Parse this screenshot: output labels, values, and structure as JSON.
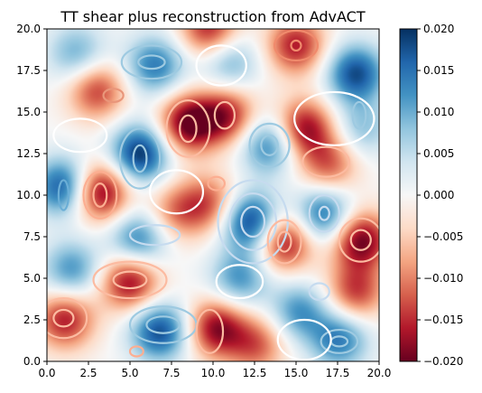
{
  "chart_data": {
    "type": "heatmap",
    "title": "TT shear plus reconstruction from AdvACT",
    "xlabel": "",
    "ylabel": "",
    "xlim": [
      0.0,
      20.0
    ],
    "ylim": [
      0.0,
      20.0
    ],
    "x_ticks": [
      "0.0",
      "2.5",
      "5.0",
      "7.5",
      "10.0",
      "12.5",
      "15.0",
      "17.5",
      "20.0"
    ],
    "y_ticks": [
      "0.0",
      "2.5",
      "5.0",
      "7.5",
      "10.0",
      "12.5",
      "15.0",
      "17.5",
      "20.0"
    ],
    "colormap": "RdBu",
    "color_min": -0.02,
    "color_max": 0.02,
    "colorbar_ticks": [
      "0.020",
      "0.015",
      "0.010",
      "0.005",
      "0.000",
      "−0.005",
      "−0.010",
      "−0.015",
      "−0.020"
    ],
    "grid": false,
    "overlay": "contours",
    "blobs": [
      {
        "x": 12.3,
        "y": 8.4,
        "value": 0.02
      },
      {
        "x": 5.6,
        "y": 12.5,
        "value": 0.02
      },
      {
        "x": 1.0,
        "y": 10.5,
        "value": 0.018
      },
      {
        "x": 18.6,
        "y": 17.3,
        "value": 0.018
      },
      {
        "x": 6.8,
        "y": 1.8,
        "value": 0.018
      },
      {
        "x": 6.5,
        "y": 17.8,
        "value": 0.014
      },
      {
        "x": 13.4,
        "y": 13.0,
        "value": 0.014
      },
      {
        "x": 16.7,
        "y": 8.8,
        "value": 0.016
      },
      {
        "x": 5.5,
        "y": 7.3,
        "value": 0.014
      },
      {
        "x": 1.5,
        "y": 5.5,
        "value": 0.012
      },
      {
        "x": 11.6,
        "y": 5.0,
        "value": 0.012
      },
      {
        "x": 15.2,
        "y": 3.0,
        "value": 0.012
      },
      {
        "x": 17.6,
        "y": 1.3,
        "value": 0.014
      },
      {
        "x": 1.8,
        "y": 18.5,
        "value": 0.01
      },
      {
        "x": 11.0,
        "y": 18.0,
        "value": 0.01
      },
      {
        "x": 19.0,
        "y": 14.0,
        "value": 0.008
      },
      {
        "x": 3.2,
        "y": 10.2,
        "value": -0.02
      },
      {
        "x": 8.5,
        "y": 14.3,
        "value": -0.02
      },
      {
        "x": 10.8,
        "y": 14.8,
        "value": -0.016
      },
      {
        "x": 15.5,
        "y": 14.0,
        "value": -0.018
      },
      {
        "x": 18.9,
        "y": 7.3,
        "value": -0.02
      },
      {
        "x": 14.3,
        "y": 7.2,
        "value": -0.018
      },
      {
        "x": 5.0,
        "y": 4.8,
        "value": -0.018
      },
      {
        "x": 1.1,
        "y": 2.5,
        "value": -0.016
      },
      {
        "x": 10.2,
        "y": 2.0,
        "value": -0.018
      },
      {
        "x": 15.0,
        "y": 19.0,
        "value": -0.016
      },
      {
        "x": 3.0,
        "y": 16.3,
        "value": -0.014
      },
      {
        "x": 18.6,
        "y": 4.2,
        "value": -0.014
      },
      {
        "x": 9.8,
        "y": 9.5,
        "value": -0.012
      },
      {
        "x": 17.0,
        "y": 11.8,
        "value": -0.012
      },
      {
        "x": 9.8,
        "y": 20.0,
        "value": -0.016
      },
      {
        "x": 7.8,
        "y": 9.0,
        "value": -0.01
      },
      {
        "x": 12.6,
        "y": 1.0,
        "value": -0.012
      }
    ],
    "contour_rings": [
      {
        "cx": 12.4,
        "cy": 8.4,
        "rx": [
          0.7,
          1.4,
          2.1
        ],
        "ry": [
          0.9,
          1.7,
          2.5
        ],
        "color": "#c6dbef"
      },
      {
        "cx": 13.4,
        "cy": 13.0,
        "rx": [
          0.5,
          1.2
        ],
        "ry": [
          0.6,
          1.3
        ],
        "color": "#9ecae1"
      },
      {
        "cx": 16.7,
        "cy": 8.9,
        "rx": [
          0.3,
          0.9
        ],
        "ry": [
          0.4,
          1.1
        ],
        "color": "#c6dbef"
      },
      {
        "cx": 5.6,
        "cy": 12.2,
        "rx": [
          0.4,
          1.2
        ],
        "ry": [
          0.8,
          1.8
        ],
        "color": "#9ecae1"
      },
      {
        "cx": 1.0,
        "cy": 10.0,
        "rx": [
          0.3
        ],
        "ry": [
          0.9
        ],
        "color": "#6baed6"
      },
      {
        "cx": 6.3,
        "cy": 18.0,
        "rx": [
          0.8,
          1.8
        ],
        "ry": [
          0.4,
          1.0
        ],
        "color": "#9ecae1"
      },
      {
        "cx": 6.5,
        "cy": 7.6,
        "rx": [
          1.5
        ],
        "ry": [
          0.6
        ],
        "color": "#c6dbef"
      },
      {
        "cx": 7.0,
        "cy": 2.2,
        "rx": [
          1.0,
          2.0
        ],
        "ry": [
          0.5,
          1.1
        ],
        "color": "#9ecae1"
      },
      {
        "cx": 17.6,
        "cy": 1.2,
        "rx": [
          0.5,
          1.1
        ],
        "ry": [
          0.3,
          0.7
        ],
        "color": "#9ecae1"
      },
      {
        "cx": 18.8,
        "cy": 14.8,
        "rx": [
          0.4
        ],
        "ry": [
          0.8
        ],
        "color": "#9ecae1"
      },
      {
        "cx": 16.4,
        "cy": 4.2,
        "rx": [
          0.6
        ],
        "ry": [
          0.5
        ],
        "color": "#c6dbef"
      },
      {
        "cx": 3.2,
        "cy": 10.0,
        "rx": [
          0.4,
          1.0
        ],
        "ry": [
          0.7,
          1.4
        ],
        "color": "#fcae91"
      },
      {
        "cx": 8.5,
        "cy": 14.0,
        "rx": [
          0.5,
          1.3
        ],
        "ry": [
          0.8,
          1.7
        ],
        "color": "#fcbba1"
      },
      {
        "cx": 15.0,
        "cy": 19.0,
        "rx": [
          0.3,
          1.3
        ],
        "ry": [
          0.3,
          0.9
        ],
        "color": "#f08a6c"
      },
      {
        "cx": 4.0,
        "cy": 16.0,
        "rx": [
          0.6
        ],
        "ry": [
          0.4
        ],
        "color": "#e9967a"
      },
      {
        "cx": 10.2,
        "cy": 10.7,
        "rx": [
          0.5
        ],
        "ry": [
          0.4
        ],
        "color": "#fcae91"
      },
      {
        "cx": 14.3,
        "cy": 7.2,
        "rx": [
          0.4,
          1.0
        ],
        "ry": [
          0.6,
          1.3
        ],
        "color": "#fcbba1"
      },
      {
        "cx": 18.9,
        "cy": 7.3,
        "rx": [
          0.6,
          1.3
        ],
        "ry": [
          0.6,
          1.3
        ],
        "color": "#fcbba1"
      },
      {
        "cx": 5.0,
        "cy": 4.9,
        "rx": [
          1.0,
          2.2
        ],
        "ry": [
          0.5,
          1.1
        ],
        "color": "#fcbba1"
      },
      {
        "cx": 1.0,
        "cy": 2.6,
        "rx": [
          0.6,
          1.4
        ],
        "ry": [
          0.5,
          1.2
        ],
        "color": "#fcbba1"
      },
      {
        "cx": 9.8,
        "cy": 1.8,
        "rx": [
          0.8
        ],
        "ry": [
          1.3
        ],
        "color": "#fcbba1"
      },
      {
        "cx": 10.7,
        "cy": 14.8,
        "rx": [
          0.6
        ],
        "ry": [
          0.8
        ],
        "color": "#fcbba1"
      },
      {
        "cx": 5.4,
        "cy": 0.6,
        "rx": [
          0.4
        ],
        "ry": [
          0.3
        ],
        "color": "#fcae91"
      },
      {
        "cx": 16.8,
        "cy": 12.0,
        "rx": [
          1.4
        ],
        "ry": [
          0.9
        ],
        "color": "#fcbba1"
      },
      {
        "cx": 11.6,
        "cy": 4.8,
        "rx": [
          1.4
        ],
        "ry": [
          1.0
        ],
        "color": "#ffffff"
      },
      {
        "cx": 2.0,
        "cy": 13.6,
        "rx": [
          1.6
        ],
        "ry": [
          1.0
        ],
        "color": "#ffffff"
      },
      {
        "cx": 7.8,
        "cy": 10.2,
        "rx": [
          1.6
        ],
        "ry": [
          1.3
        ],
        "color": "#ffffff"
      },
      {
        "cx": 15.5,
        "cy": 1.3,
        "rx": [
          1.6
        ],
        "ry": [
          1.2
        ],
        "color": "#ffffff"
      },
      {
        "cx": 10.5,
        "cy": 17.8,
        "rx": [
          1.5
        ],
        "ry": [
          1.2
        ],
        "color": "#ffffff"
      },
      {
        "cx": 17.3,
        "cy": 14.6,
        "rx": [
          2.4
        ],
        "ry": [
          1.6
        ],
        "color": "#ffffff"
      }
    ]
  }
}
